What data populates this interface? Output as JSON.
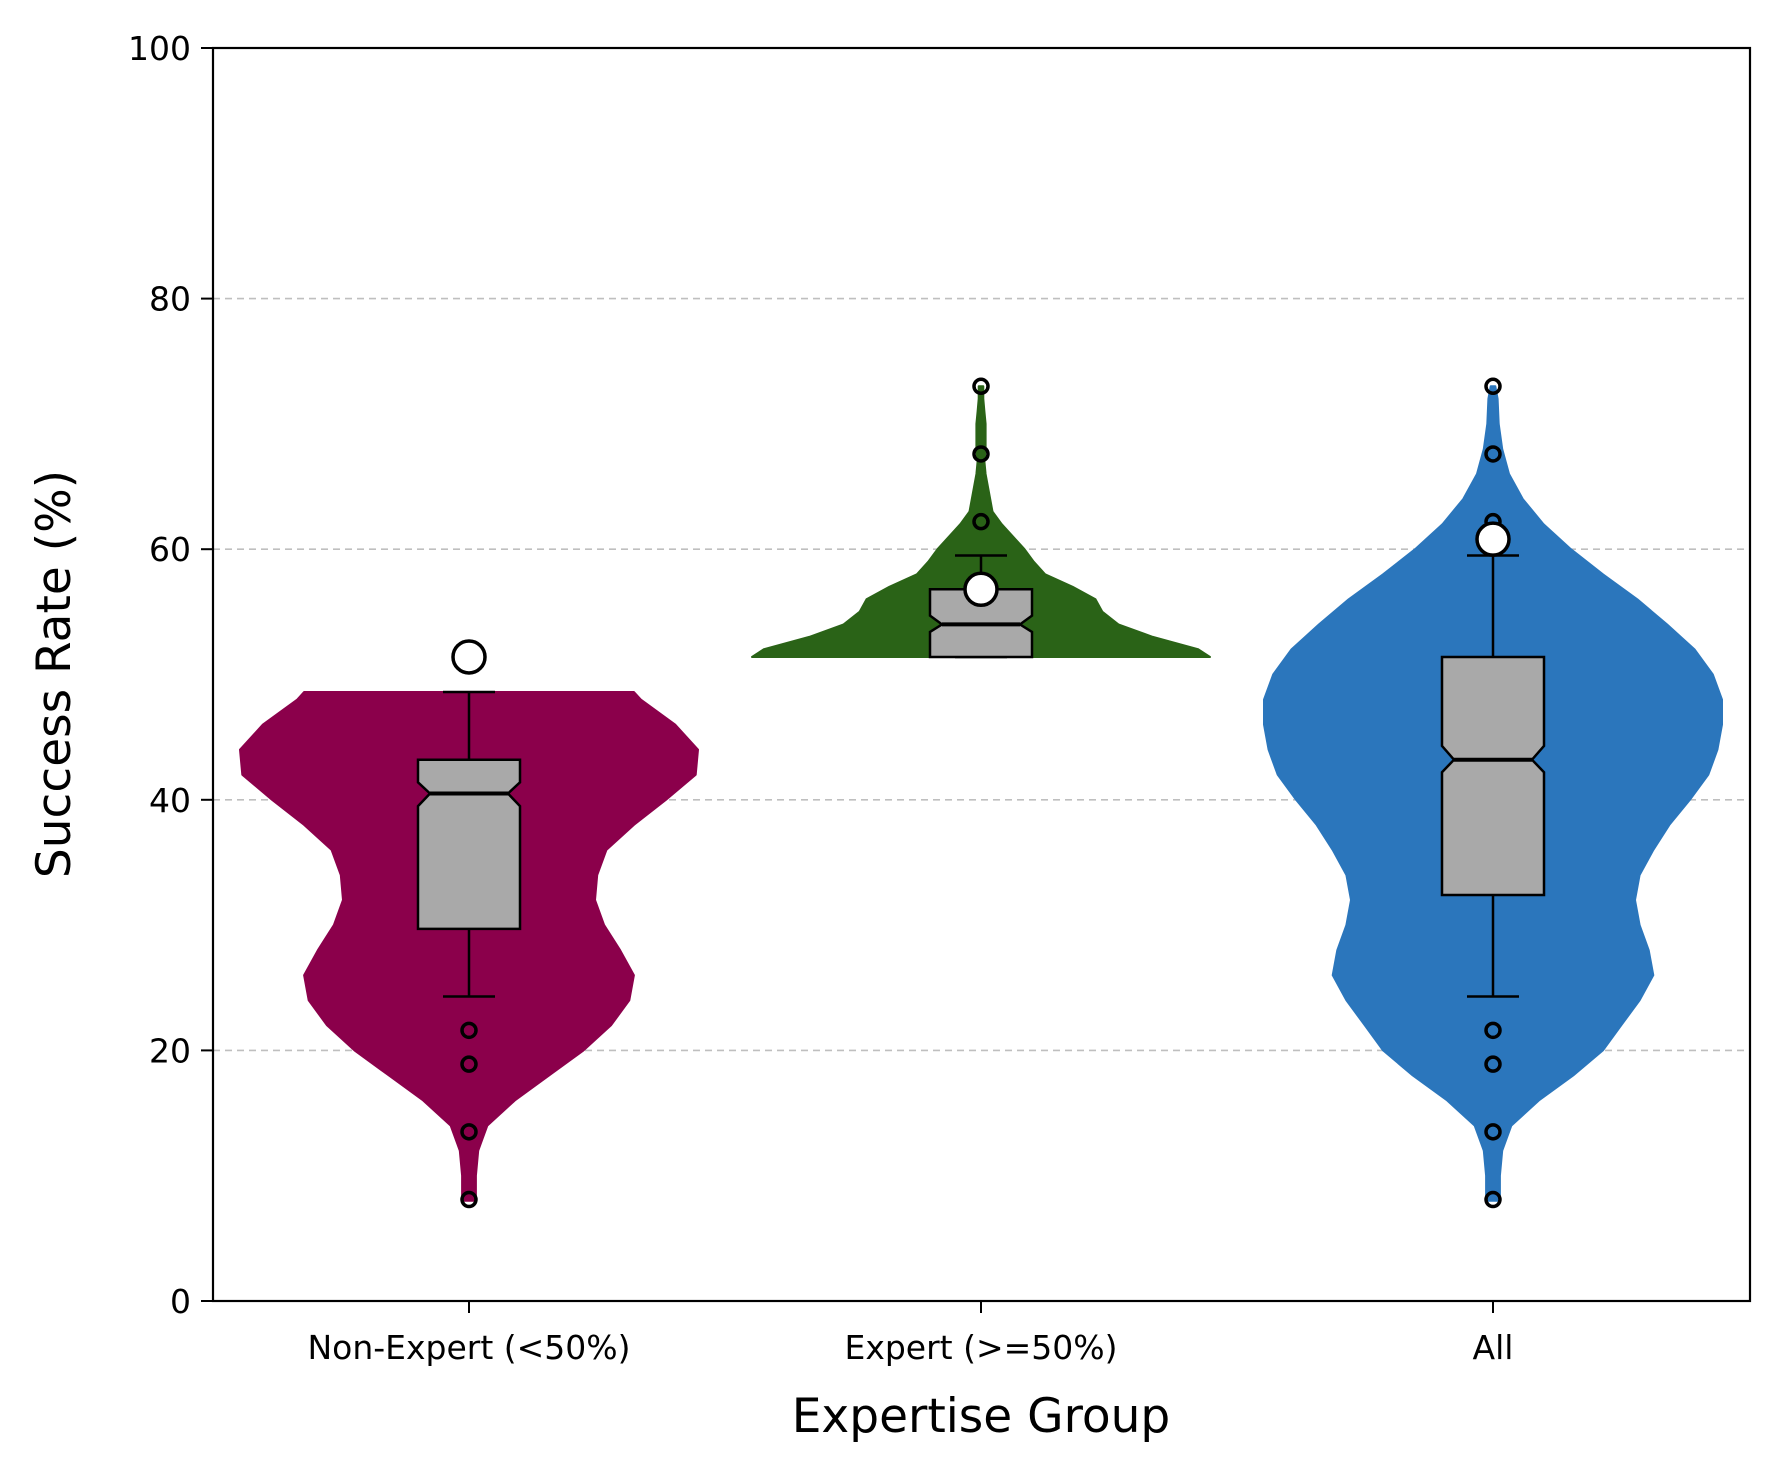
{
  "chart_data": {
    "type": "violin",
    "title": "",
    "xlabel": "Expertise Group",
    "ylabel": "Success Rate (%)",
    "ylim": [
      0,
      100
    ],
    "yticks": [
      0,
      20,
      40,
      60,
      80,
      100
    ],
    "grid": "horizontal dashed at 20, 40, 60, 80",
    "box_color": "#a9a9a9",
    "categories": [
      "Non-Expert (<50%)",
      "Expert (>=50%)",
      "All"
    ],
    "groups": [
      {
        "label": "Non-Expert (<50%)",
        "color": "#8b004b",
        "violin_range": [
          8,
          48.6
        ],
        "density": [
          [
            8,
            0.03
          ],
          [
            10,
            0.03
          ],
          [
            12,
            0.04
          ],
          [
            14,
            0.08
          ],
          [
            16,
            0.2
          ],
          [
            18,
            0.35
          ],
          [
            20,
            0.5
          ],
          [
            22,
            0.62
          ],
          [
            24,
            0.7
          ],
          [
            26,
            0.72
          ],
          [
            28,
            0.66
          ],
          [
            30,
            0.59
          ],
          [
            32,
            0.55
          ],
          [
            34,
            0.56
          ],
          [
            36,
            0.6
          ],
          [
            38,
            0.72
          ],
          [
            40,
            0.86
          ],
          [
            42,
            0.99
          ],
          [
            44,
            1.0
          ],
          [
            46,
            0.9
          ],
          [
            48,
            0.75
          ],
          [
            48.6,
            0.72
          ]
        ],
        "whisker_low": 24.3,
        "q1": 29.7,
        "median": 40.5,
        "q3": 43.2,
        "whisker_high": 48.6,
        "notch": [
          39.5,
          41.4
        ],
        "outliers": [
          21.6,
          18.9,
          13.5,
          8.1
        ],
        "mean": 51.4
      },
      {
        "label": "Expert (>=50%)",
        "color": "#2a6317",
        "violin_range": [
          51.4,
          73
        ],
        "density": [
          [
            51.4,
            1.0
          ],
          [
            52,
            0.95
          ],
          [
            53,
            0.75
          ],
          [
            54,
            0.6
          ],
          [
            55,
            0.53
          ],
          [
            56,
            0.5
          ],
          [
            57,
            0.4
          ],
          [
            58,
            0.28
          ],
          [
            59,
            0.23
          ],
          [
            60,
            0.19
          ],
          [
            61,
            0.14
          ],
          [
            62,
            0.09
          ],
          [
            63,
            0.05
          ],
          [
            64,
            0.04
          ],
          [
            65,
            0.03
          ],
          [
            66,
            0.02
          ],
          [
            67,
            0.015
          ],
          [
            68,
            0.02
          ],
          [
            69,
            0.02
          ],
          [
            70,
            0.02
          ],
          [
            71,
            0.015
          ],
          [
            72,
            0.01
          ],
          [
            73,
            0.01
          ]
        ],
        "whisker_low": 51.4,
        "q1": 51.4,
        "median": 54.0,
        "q3": 56.8,
        "whisker_high": 59.5,
        "notch": [
          53.4,
          54.7
        ],
        "outliers": [
          62.2,
          67.6,
          73.0
        ],
        "mean": 56.8
      },
      {
        "label": "All",
        "color": "#2b76bc",
        "violin_range": [
          8,
          73
        ],
        "density": [
          [
            8,
            0.03
          ],
          [
            10,
            0.03
          ],
          [
            12,
            0.04
          ],
          [
            14,
            0.08
          ],
          [
            16,
            0.2
          ],
          [
            18,
            0.35
          ],
          [
            20,
            0.48
          ],
          [
            22,
            0.56
          ],
          [
            24,
            0.64
          ],
          [
            26,
            0.7
          ],
          [
            28,
            0.68
          ],
          [
            30,
            0.64
          ],
          [
            32,
            0.62
          ],
          [
            34,
            0.64
          ],
          [
            36,
            0.7
          ],
          [
            38,
            0.77
          ],
          [
            40,
            0.86
          ],
          [
            42,
            0.94
          ],
          [
            44,
            0.98
          ],
          [
            46,
            1.0
          ],
          [
            48,
            1.0
          ],
          [
            50,
            0.96
          ],
          [
            52,
            0.88
          ],
          [
            54,
            0.76
          ],
          [
            56,
            0.63
          ],
          [
            58,
            0.48
          ],
          [
            60,
            0.34
          ],
          [
            62,
            0.22
          ],
          [
            64,
            0.13
          ],
          [
            66,
            0.07
          ],
          [
            68,
            0.04
          ],
          [
            70,
            0.025
          ],
          [
            72,
            0.02
          ],
          [
            73,
            0.01
          ]
        ],
        "whisker_low": 24.3,
        "q1": 32.4,
        "median": 43.2,
        "q3": 51.4,
        "whisker_high": 59.5,
        "notch": [
          42.2,
          44.3
        ],
        "outliers": [
          21.6,
          18.9,
          13.5,
          8.1,
          62.2,
          67.6,
          73.0
        ],
        "mean": 60.8
      }
    ]
  }
}
